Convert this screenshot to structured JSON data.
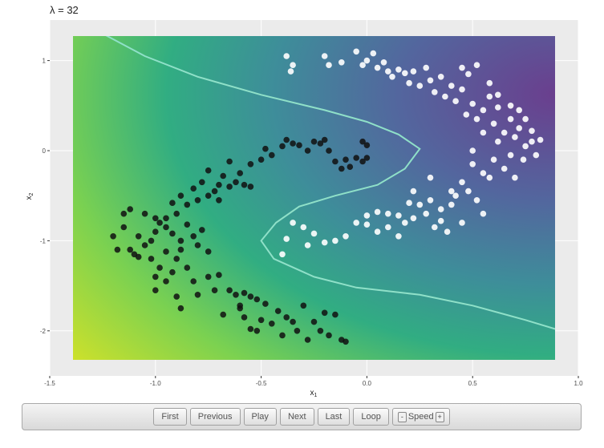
{
  "title": "λ = 32",
  "controls": {
    "first": "First",
    "previous": "Previous",
    "play": "Play",
    "next": "Next",
    "last": "Last",
    "loop": "Loop",
    "speed_label": "Speed",
    "speed_minus": "-",
    "speed_plus": "+"
  },
  "chart_data": {
    "type": "scatter",
    "title": "λ = 32",
    "xlabel": "x1",
    "ylabel": "x2",
    "xlim": [
      -1.5,
      1.0
    ],
    "ylim": [
      -2.5,
      1.45
    ],
    "xticks": [
      -1.5,
      -1.0,
      -0.5,
      0.0,
      0.5,
      1.0
    ],
    "xtick_labels": [
      "-1.5",
      "-1.0",
      "-0.5",
      "0.0",
      "0.5",
      "1.0"
    ],
    "yticks": [
      -2,
      -1,
      0,
      1
    ],
    "ytick_labels": [
      "-2",
      "-1",
      "0",
      "1"
    ],
    "grid": true,
    "background": "viridis decision surface",
    "colors": {
      "class_black": "#111111",
      "class_white": "#ffffff",
      "boundary": "#8fe0c8",
      "panel": "#ebebeb",
      "surface_low": "#d2e22c",
      "surface_mid": "#29a487",
      "surface_high": "#6a4f94"
    },
    "boundary": [
      [
        -1.38,
        1.42
      ],
      [
        -1.25,
        1.3
      ],
      [
        -1.05,
        1.05
      ],
      [
        -0.8,
        0.82
      ],
      [
        -0.5,
        0.62
      ],
      [
        -0.2,
        0.45
      ],
      [
        0.0,
        0.32
      ],
      [
        0.15,
        0.18
      ],
      [
        0.25,
        0.02
      ],
      [
        0.18,
        -0.2
      ],
      [
        0.05,
        -0.38
      ],
      [
        -0.15,
        -0.5
      ],
      [
        -0.32,
        -0.62
      ],
      [
        -0.43,
        -0.8
      ],
      [
        -0.5,
        -1.0
      ],
      [
        -0.44,
        -1.2
      ],
      [
        -0.25,
        -1.4
      ],
      [
        -0.05,
        -1.52
      ],
      [
        0.25,
        -1.6
      ],
      [
        0.5,
        -1.72
      ],
      [
        0.75,
        -1.88
      ],
      [
        0.99,
        -2.05
      ]
    ],
    "series": [
      {
        "points": [
          [
            -0.38,
            0.12
          ],
          [
            -0.4,
            0.05
          ],
          [
            -0.35,
            0.08
          ],
          [
            -0.32,
            0.06
          ],
          [
            -0.28,
            0.0
          ],
          [
            -0.25,
            0.1
          ],
          [
            -0.22,
            0.08
          ],
          [
            -0.2,
            0.12
          ],
          [
            -0.18,
            0.0
          ],
          [
            -0.15,
            -0.12
          ],
          [
            -0.12,
            -0.2
          ],
          [
            -0.1,
            -0.1
          ],
          [
            -0.08,
            -0.18
          ],
          [
            -0.05,
            -0.08
          ],
          [
            -0.02,
            -0.12
          ],
          [
            -0.02,
            0.1
          ],
          [
            0.0,
            -0.08
          ],
          [
            0.0,
            0.06
          ],
          [
            -0.45,
            -0.05
          ],
          [
            -0.48,
            0.02
          ],
          [
            -0.5,
            -0.1
          ],
          [
            -0.55,
            -0.15
          ],
          [
            -0.6,
            -0.25
          ],
          [
            -0.62,
            -0.35
          ],
          [
            -0.65,
            -0.12
          ],
          [
            -0.68,
            -0.28
          ],
          [
            -0.7,
            -0.38
          ],
          [
            -0.72,
            -0.45
          ],
          [
            -0.75,
            -0.5
          ],
          [
            -0.78,
            -0.35
          ],
          [
            -0.8,
            -0.55
          ],
          [
            -0.82,
            -0.42
          ],
          [
            -0.85,
            -0.6
          ],
          [
            -0.88,
            -0.5
          ],
          [
            -0.9,
            -0.7
          ],
          [
            -0.92,
            -0.58
          ],
          [
            -0.95,
            -0.75
          ],
          [
            -0.98,
            -0.8
          ],
          [
            -1.0,
            -0.9
          ],
          [
            -1.02,
            -1.0
          ],
          [
            -1.05,
            -1.05
          ],
          [
            -1.08,
            -0.95
          ],
          [
            -1.1,
            -1.15
          ],
          [
            -1.12,
            -1.1
          ],
          [
            -1.15,
            -0.85
          ],
          [
            -1.18,
            -1.1
          ],
          [
            -1.2,
            -0.95
          ],
          [
            -1.15,
            -0.7
          ],
          [
            -1.12,
            -0.65
          ],
          [
            -1.05,
            -0.7
          ],
          [
            -1.0,
            -0.75
          ],
          [
            -0.95,
            -0.85
          ],
          [
            -0.92,
            -0.92
          ],
          [
            -0.88,
            -1.0
          ],
          [
            -0.85,
            -0.82
          ],
          [
            -0.82,
            -0.95
          ],
          [
            -0.8,
            -1.05
          ],
          [
            -0.78,
            -0.88
          ],
          [
            -0.75,
            -1.12
          ],
          [
            -0.9,
            -1.2
          ],
          [
            -0.92,
            -1.35
          ],
          [
            -0.95,
            -1.45
          ],
          [
            -0.98,
            -1.3
          ],
          [
            -1.0,
            -1.55
          ],
          [
            -1.02,
            -1.2
          ],
          [
            -0.88,
            -1.1
          ],
          [
            -0.85,
            -1.3
          ],
          [
            -0.82,
            -1.45
          ],
          [
            -0.8,
            -1.6
          ],
          [
            -0.75,
            -1.4
          ],
          [
            -0.72,
            -1.55
          ],
          [
            -0.7,
            -1.38
          ],
          [
            -0.68,
            -1.82
          ],
          [
            -0.62,
            -1.6
          ],
          [
            -0.6,
            -1.75
          ],
          [
            -0.58,
            -1.85
          ],
          [
            -0.55,
            -1.98
          ],
          [
            -0.52,
            -2.0
          ],
          [
            -0.5,
            -1.88
          ],
          [
            -0.48,
            -1.7
          ],
          [
            -0.45,
            -1.92
          ],
          [
            -0.42,
            -1.78
          ],
          [
            -0.4,
            -2.05
          ],
          [
            -0.38,
            -1.85
          ],
          [
            -0.35,
            -1.9
          ],
          [
            -0.33,
            -2.0
          ],
          [
            -0.3,
            -1.72
          ],
          [
            -0.28,
            -2.1
          ],
          [
            -0.25,
            -1.9
          ],
          [
            -0.22,
            -2.0
          ],
          [
            -0.2,
            -1.8
          ],
          [
            -0.18,
            -2.05
          ],
          [
            -0.15,
            -1.82
          ],
          [
            -0.12,
            -2.1
          ],
          [
            -0.1,
            -2.12
          ],
          [
            -0.88,
            -1.75
          ],
          [
            -0.9,
            -1.62
          ],
          [
            -0.6,
            -1.72
          ],
          [
            -0.55,
            -1.62
          ],
          [
            -0.52,
            -1.65
          ],
          [
            -0.58,
            -1.58
          ],
          [
            -0.65,
            -1.55
          ],
          [
            -0.95,
            -1.12
          ],
          [
            -1.0,
            -1.4
          ],
          [
            -1.08,
            -1.18
          ],
          [
            -0.7,
            -0.55
          ],
          [
            -0.75,
            -0.22
          ],
          [
            -0.65,
            -0.4
          ],
          [
            -0.58,
            -0.38
          ],
          [
            -0.55,
            -0.4
          ]
        ]
      },
      {
        "points": [
          [
            -0.38,
            1.05
          ],
          [
            -0.35,
            0.95
          ],
          [
            -0.36,
            0.88
          ],
          [
            -0.2,
            1.05
          ],
          [
            -0.18,
            0.95
          ],
          [
            -0.12,
            0.98
          ],
          [
            -0.05,
            1.1
          ],
          [
            -0.02,
            0.95
          ],
          [
            0.0,
            1.0
          ],
          [
            0.03,
            1.08
          ],
          [
            0.05,
            0.92
          ],
          [
            0.08,
            0.98
          ],
          [
            0.1,
            0.88
          ],
          [
            0.12,
            0.82
          ],
          [
            0.15,
            0.9
          ],
          [
            0.18,
            0.86
          ],
          [
            0.2,
            0.75
          ],
          [
            0.22,
            0.88
          ],
          [
            0.25,
            0.72
          ],
          [
            0.28,
            0.92
          ],
          [
            0.3,
            0.78
          ],
          [
            0.32,
            0.65
          ],
          [
            0.35,
            0.82
          ],
          [
            0.37,
            0.6
          ],
          [
            0.4,
            0.72
          ],
          [
            0.42,
            0.55
          ],
          [
            0.45,
            0.68
          ],
          [
            0.47,
            0.4
          ],
          [
            0.5,
            0.52
          ],
          [
            0.52,
            0.35
          ],
          [
            0.55,
            0.45
          ],
          [
            0.58,
            0.6
          ],
          [
            0.6,
            0.3
          ],
          [
            0.62,
            0.48
          ],
          [
            0.65,
            0.2
          ],
          [
            0.68,
            0.35
          ],
          [
            0.7,
            0.15
          ],
          [
            0.72,
            0.25
          ],
          [
            0.75,
            0.05
          ],
          [
            0.78,
            0.1
          ],
          [
            0.8,
            -0.05
          ],
          [
            0.62,
            0.1
          ],
          [
            0.55,
            0.2
          ],
          [
            0.5,
            0.0
          ],
          [
            0.6,
            -0.1
          ],
          [
            0.65,
            -0.2
          ],
          [
            0.7,
            -0.3
          ],
          [
            0.55,
            -0.25
          ],
          [
            0.5,
            -0.15
          ],
          [
            0.45,
            -0.35
          ],
          [
            0.42,
            -0.5
          ],
          [
            0.4,
            -0.6
          ],
          [
            0.35,
            -0.65
          ],
          [
            0.3,
            -0.55
          ],
          [
            0.25,
            -0.6
          ],
          [
            0.22,
            -0.75
          ],
          [
            0.18,
            -0.8
          ],
          [
            0.15,
            -0.72
          ],
          [
            0.1,
            -0.85
          ],
          [
            0.05,
            -0.9
          ],
          [
            0.0,
            -0.82
          ],
          [
            -0.05,
            -0.8
          ],
          [
            -0.1,
            -0.95
          ],
          [
            -0.15,
            -1.0
          ],
          [
            -0.2,
            -1.02
          ],
          [
            -0.25,
            -0.92
          ],
          [
            -0.28,
            -1.05
          ],
          [
            -0.3,
            -0.85
          ],
          [
            -0.35,
            -0.8
          ],
          [
            -0.38,
            -0.98
          ],
          [
            -0.4,
            -1.15
          ],
          [
            0.0,
            -0.72
          ],
          [
            0.05,
            -0.68
          ],
          [
            0.1,
            -0.7
          ],
          [
            0.2,
            -0.58
          ],
          [
            0.28,
            -0.7
          ],
          [
            0.32,
            -0.85
          ],
          [
            0.35,
            -0.78
          ],
          [
            0.38,
            -0.9
          ],
          [
            0.45,
            -0.8
          ],
          [
            0.52,
            -0.55
          ],
          [
            0.55,
            -0.7
          ],
          [
            0.45,
            0.92
          ],
          [
            0.48,
            0.85
          ],
          [
            0.52,
            0.95
          ],
          [
            0.58,
            0.75
          ],
          [
            0.62,
            0.62
          ],
          [
            0.68,
            0.5
          ],
          [
            0.72,
            0.45
          ],
          [
            0.75,
            0.35
          ],
          [
            0.78,
            0.22
          ],
          [
            0.82,
            0.12
          ],
          [
            0.74,
            -0.1
          ],
          [
            0.68,
            -0.05
          ],
          [
            0.58,
            -0.3
          ],
          [
            0.48,
            -0.45
          ],
          [
            0.4,
            -0.45
          ],
          [
            0.3,
            -0.3
          ],
          [
            0.22,
            -0.45
          ],
          [
            0.15,
            -0.95
          ]
        ]
      }
    ]
  }
}
